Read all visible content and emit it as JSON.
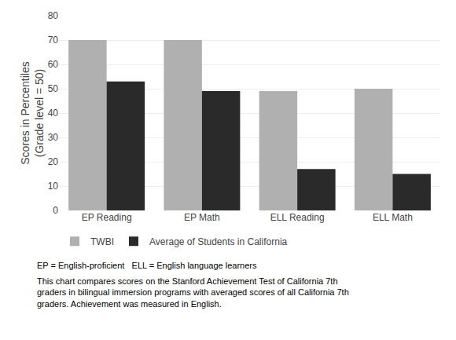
{
  "chart_data": {
    "type": "bar",
    "categories": [
      "EP Reading",
      "EP Math",
      "ELL Reading",
      "ELL Math"
    ],
    "series": [
      {
        "name": "TWBI",
        "color": "#b0b0b0",
        "values": [
          70,
          70,
          49,
          50
        ]
      },
      {
        "name": "Average of Students in California",
        "color": "#2a2a2a",
        "values": [
          53,
          49,
          17,
          15
        ]
      }
    ],
    "ylabel": "Scores in Percentiles\n(Grade level = 50)",
    "ylim": [
      0,
      80
    ],
    "yticks": [
      0,
      10,
      20,
      30,
      40,
      50,
      60,
      70,
      80
    ],
    "grid": true,
    "legend": "bottom",
    "annotations": [
      "EP = English-proficient   ELL = English language learners",
      "This chart compares scores on the Stanford Achievement Test of California 7th\ngraders in bilingual immersion programs with averaged scores of all California 7th\ngraders. Achievement was measured in English."
    ]
  }
}
